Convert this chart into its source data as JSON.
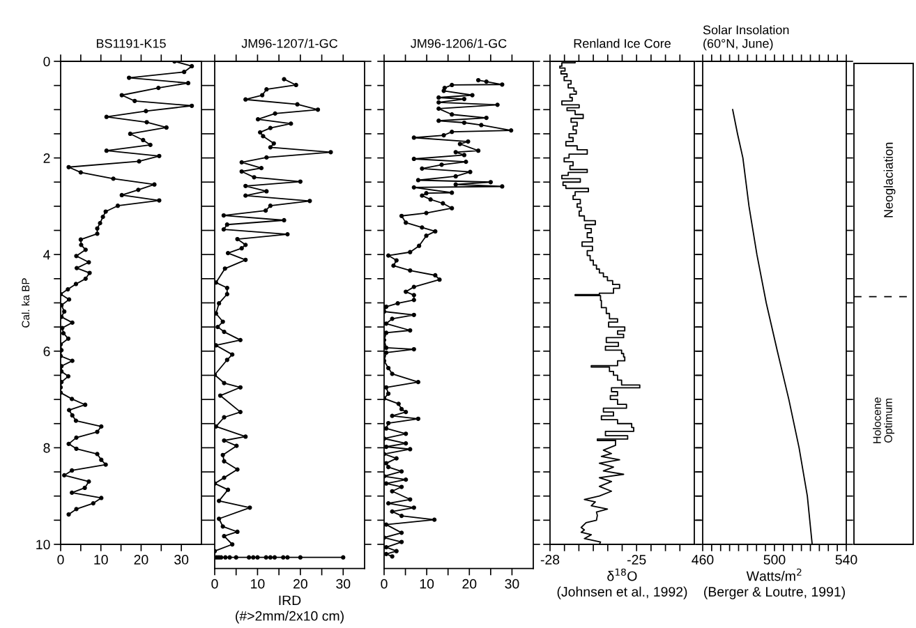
{
  "chart_data": [
    {
      "type": "line",
      "title": "BS1191-K15",
      "ylabel": "Cal. ka BP",
      "marker": "circle",
      "grid": false,
      "legend": false,
      "xlim": [
        0,
        35
      ],
      "xticks": [
        0,
        {
          "value": 5,
          "label": null
        },
        10,
        {
          "value": 15,
          "label": null
        },
        20,
        {
          "value": 25,
          "label": null
        },
        30
      ],
      "ylim": [
        10,
        0
      ],
      "yticks": [
        0,
        {
          "value": 0.5,
          "label": null
        },
        {
          "value": 1,
          "label": null
        },
        {
          "value": 1.5,
          "label": null
        },
        2,
        {
          "value": 2.5,
          "label": null
        },
        {
          "value": 3,
          "label": null
        },
        {
          "value": 3.5,
          "label": null
        },
        4,
        {
          "value": 4.5,
          "label": null
        },
        {
          "value": 5,
          "label": null
        },
        {
          "value": 5.5,
          "label": null
        },
        6,
        {
          "value": 6.5,
          "label": null
        },
        {
          "value": 7,
          "label": null
        },
        {
          "value": 7.5,
          "label": null
        },
        8,
        {
          "value": 8.5,
          "label": null
        },
        {
          "value": 9,
          "label": null
        },
        {
          "value": 9.5,
          "label": null
        },
        10
      ],
      "series": [
        {
          "color": "#000000",
          "x": [
            28.3,
            32.6,
            30.7,
            17,
            31.7,
            24.3,
            15.2,
            18.4,
            32.6,
            21.2,
            11.4,
            21.4,
            26.3,
            17.3,
            20.5,
            22.3,
            11.4,
            24.5,
            19.5,
            2.0,
            5.0,
            13.1,
            23.3,
            19.3,
            15.2,
            24.5,
            14.2,
            11.2,
            10.5,
            9.8,
            9.1,
            9.1,
            5.0,
            5.1,
            6.2,
            3.9,
            7.0,
            4.0,
            7.2,
            6.2,
            3.8,
            1.8,
            0,
            2.1,
            0.2,
            0.9,
            0.2,
            2.9,
            0.4,
            0.7,
            1.9,
            0,
            0.2,
            0,
            2.9,
            0.2,
            0.2,
            1.9,
            0.2,
            0,
            0,
            2.8,
            6.1,
            2.1,
            2.9,
            3.8,
            10.1,
            9.1,
            3.9,
            2.0,
            3.9,
            9.1,
            10.1,
            11.2,
            2.8,
            0.9,
            7.0,
            6.0,
            2.8,
            10.1,
            8.1,
            3.9,
            2.0
          ],
          "values": [
            0.0,
            0.1,
            0.22,
            0.34,
            0.45,
            0.55,
            0.7,
            0.82,
            0.92,
            1.03,
            1.15,
            1.26,
            1.37,
            1.5,
            1.63,
            1.73,
            1.85,
            1.96,
            2.07,
            2.19,
            2.3,
            2.43,
            2.55,
            2.66,
            2.77,
            2.88,
            2.99,
            3.11,
            3.22,
            3.35,
            3.46,
            3.57,
            3.69,
            3.8,
            3.9,
            4.03,
            4.16,
            4.28,
            4.38,
            4.5,
            4.61,
            4.72,
            4.82,
            4.93,
            5.05,
            5.18,
            5.29,
            5.41,
            5.52,
            5.63,
            5.74,
            5.86,
            5.98,
            6.1,
            6.2,
            6.31,
            6.42,
            6.52,
            6.64,
            6.75,
            6.86,
            6.99,
            7.11,
            7.22,
            7.33,
            7.44,
            7.56,
            7.67,
            7.79,
            7.92,
            8.02,
            8.13,
            8.25,
            8.35,
            8.47,
            8.57,
            8.7,
            8.83,
            8.93,
            9.04,
            9.15,
            9.27,
            9.38
          ]
        }
      ]
    },
    {
      "type": "line",
      "title": "JM96-1207/1-GC",
      "xlabel": "IRD\n(#>2mm/2x10 cm)",
      "marker": "circle",
      "grid": false,
      "legend": false,
      "tick_labels": "x",
      "xlim": [
        0,
        35
      ],
      "xticks": [
        0,
        {
          "value": 5,
          "label": null
        },
        10,
        {
          "value": 15,
          "label": null
        },
        20,
        {
          "value": 25,
          "label": null
        },
        30
      ],
      "ylim": [
        10.5,
        0
      ],
      "yticks": [
        0,
        {
          "value": 0.5,
          "label": null
        },
        {
          "value": 1,
          "label": null
        },
        {
          "value": 1.5,
          "label": null
        },
        2,
        {
          "value": 2.5,
          "label": null
        },
        {
          "value": 3,
          "label": null
        },
        {
          "value": 3.5,
          "label": null
        },
        4,
        {
          "value": 4.5,
          "label": null
        },
        {
          "value": 5,
          "label": null
        },
        {
          "value": 5.5,
          "label": null
        },
        6,
        {
          "value": 6.5,
          "label": null
        },
        {
          "value": 7,
          "label": null
        },
        {
          "value": 7.5,
          "label": null
        },
        8,
        {
          "value": 8.5,
          "label": null
        },
        {
          "value": 9,
          "label": null
        },
        {
          "value": 9.5,
          "label": null
        },
        10
      ],
      "series": [
        {
          "color": "#000000",
          "x": [
            16.2,
            19.0,
            12.1,
            11.1,
            7.2,
            19.3,
            24.1,
            14.1,
            10.1,
            17.8,
            13.0,
            10.6,
            11.3,
            13.8,
            13.0,
            27.1,
            12.1,
            6.3,
            10.9,
            6.3,
            9.2,
            20.0,
            7.2,
            12.1,
            7.2,
            22.2,
            13.0,
            11.9,
            2.1,
            16.2,
            2.9,
            2.1,
            17.0,
            5.3,
            7.2,
            6.3,
            3.1,
            7.2,
            2.4,
            0.3,
            2.9,
            2.9,
            1.0,
            0.3,
            1.9,
            0.7,
            2.2,
            6.0,
            0.3,
            4.1,
            2.9,
            0,
            2.2,
            6.0,
            1.3,
            6.0,
            2.2,
            0.3,
            7.2,
            2.2,
            5.1,
            1.9,
            2.2,
            5.3,
            2.2,
            0,
            3.1,
            1.0,
            8.2,
            1.0,
            1.9,
            5.3,
            2.2,
            4.1,
            0,
            0,
            0.5,
            1,
            1.5,
            2.5,
            3.5,
            5,
            8,
            9,
            10,
            12,
            13,
            14,
            16,
            17,
            20,
            30
          ],
          "values": [
            0.37,
            0.49,
            0.58,
            0.7,
            0.79,
            0.89,
            1.0,
            1.08,
            1.2,
            1.29,
            1.38,
            1.47,
            1.55,
            1.7,
            1.78,
            1.88,
            1.99,
            2.09,
            2.21,
            2.28,
            2.4,
            2.49,
            2.58,
            2.69,
            2.78,
            2.89,
            2.99,
            3.09,
            3.19,
            3.29,
            3.38,
            3.48,
            3.58,
            3.68,
            3.8,
            3.87,
            3.97,
            4.11,
            4.29,
            4.58,
            4.69,
            4.82,
            5.01,
            5.22,
            5.39,
            5.5,
            5.6,
            5.77,
            5.88,
            6.07,
            6.18,
            6.49,
            6.66,
            6.75,
            6.92,
            7.26,
            7.37,
            7.56,
            7.77,
            7.85,
            7.96,
            8.15,
            8.28,
            8.45,
            8.62,
            8.74,
            8.87,
            9.1,
            9.24,
            9.47,
            9.63,
            9.74,
            9.83,
            10.0,
            10.14,
            10.27,
            10.27,
            10.27,
            10.27,
            10.27,
            10.27,
            10.27,
            10.27,
            10.27,
            10.27,
            10.27,
            10.27,
            10.27,
            10.27,
            10.27,
            10.27,
            10.27
          ]
        }
      ]
    },
    {
      "type": "line",
      "title": "JM96-1206/1-GC",
      "marker": "circle",
      "grid": false,
      "legend": false,
      "tick_labels": "x",
      "xlim": [
        0,
        35
      ],
      "xticks": [
        0,
        {
          "value": 5,
          "label": null
        },
        10,
        {
          "value": 15,
          "label": null
        },
        20,
        {
          "value": 25,
          "label": null
        },
        30
      ],
      "ylim": [
        10.5,
        0
      ],
      "yticks": [
        0,
        {
          "value": 0.5,
          "label": null
        },
        {
          "value": 1,
          "label": null
        },
        {
          "value": 1.5,
          "label": null
        },
        2,
        {
          "value": 2.5,
          "label": null
        },
        {
          "value": 3,
          "label": null
        },
        {
          "value": 3.5,
          "label": null
        },
        4,
        {
          "value": 4.5,
          "label": null
        },
        {
          "value": 5,
          "label": null
        },
        {
          "value": 5.5,
          "label": null
        },
        6,
        {
          "value": 6.5,
          "label": null
        },
        {
          "value": 7,
          "label": null
        },
        {
          "value": 7.5,
          "label": null
        },
        8,
        {
          "value": 8.5,
          "label": null
        },
        {
          "value": 9,
          "label": null
        },
        {
          "value": 9.5,
          "label": null
        },
        10
      ],
      "series": [
        {
          "color": "#000000",
          "x": [
            22.1,
            24.0,
            27.7,
            15.9,
            14.2,
            14.0,
            20.7,
            12.8,
            18.8,
            12.8,
            26.6,
            12.8,
            15.9,
            24.0,
            12.8,
            18.8,
            22.8,
            29.8,
            15.9,
            14.0,
            7.0,
            19.7,
            17.8,
            22.1,
            16.8,
            18.8,
            7.0,
            19.2,
            13.5,
            8.9,
            20.2,
            16.8,
            8.0,
            25.0,
            16.8,
            27.7,
            7.0,
            15.9,
            9.9,
            8.9,
            10.9,
            13.8,
            15.9,
            9.9,
            4.1,
            5.1,
            8.9,
            12.0,
            9.9,
            8.2,
            6.1,
            1.0,
            2.9,
            2.2,
            6.1,
            12.0,
            13.0,
            7.0,
            5.1,
            7.0,
            7.0,
            3.2,
            0.5,
            0,
            7.0,
            1.9,
            0.5,
            6.1,
            0.5,
            0,
            0.5,
            7.0,
            0.5,
            0,
            1.0,
            1.9,
            8.0,
            0.5,
            1.0,
            0,
            3.4,
            4.1,
            5.1,
            1.9,
            8.0,
            1.0,
            0.5,
            5.1,
            0,
            5.1,
            0.5,
            6.1,
            0,
            2.9,
            0.5,
            1.0,
            4.1,
            0,
            5.1,
            0.5,
            4.1,
            1.9,
            6.1,
            1.0,
            7.0,
            1.9,
            4.1,
            11.8,
            0.5,
            4.1,
            0,
            4.1,
            0.5,
            2.9,
            0.5,
            1.9
          ],
          "values": [
            0.39,
            0.42,
            0.48,
            0.49,
            0.55,
            0.61,
            0.7,
            0.75,
            0.78,
            0.85,
            0.9,
            0.98,
            1.1,
            1.17,
            1.23,
            1.27,
            1.32,
            1.43,
            1.46,
            1.53,
            1.58,
            1.66,
            1.71,
            1.85,
            1.88,
            1.94,
            2.02,
            2.08,
            2.14,
            2.22,
            2.29,
            2.38,
            2.46,
            2.5,
            2.55,
            2.59,
            2.61,
            2.72,
            2.73,
            2.78,
            2.86,
            2.94,
            3.04,
            3.14,
            3.2,
            3.34,
            3.44,
            3.52,
            3.61,
            3.82,
            3.95,
            4.02,
            4.12,
            4.23,
            4.33,
            4.43,
            4.52,
            4.67,
            4.77,
            4.84,
            4.94,
            5.01,
            5.08,
            5.18,
            5.25,
            5.33,
            5.43,
            5.57,
            5.62,
            5.77,
            5.93,
            5.96,
            6.03,
            6.2,
            6.35,
            6.47,
            6.64,
            6.75,
            6.88,
            6.98,
            7.09,
            7.2,
            7.26,
            7.34,
            7.4,
            7.49,
            7.6,
            7.71,
            7.81,
            7.91,
            7.98,
            8.03,
            8.13,
            8.22,
            8.32,
            8.4,
            8.49,
            8.59,
            8.66,
            8.74,
            8.81,
            8.9,
            9.07,
            9.15,
            9.24,
            9.32,
            9.41,
            9.49,
            9.59,
            9.76,
            9.86,
            9.95,
            10.06,
            10.14,
            10.2,
            10.25
          ]
        }
      ]
    },
    {
      "type": "step",
      "title": "Renland Ice Core",
      "xlabel": "δ$^{18}$O\n(Johnsen et al., 1992)",
      "marker": "none",
      "grid": false,
      "legend": false,
      "tick_labels": "x",
      "xlim": [
        -28,
        -23
      ],
      "xticks": [
        -28,
        {
          "value": -27.5,
          "label": null
        },
        {
          "value": -27,
          "label": null
        },
        {
          "value": -26.5,
          "label": null
        },
        {
          "value": -26,
          "label": null
        },
        {
          "value": -25.5,
          "label": null
        },
        -25,
        {
          "value": -24.5,
          "label": null
        },
        {
          "value": -24,
          "label": null
        },
        {
          "value": -23.5,
          "label": null
        }
      ],
      "ylim": [
        10,
        0
      ],
      "yticks": [
        0,
        {
          "value": 0.5,
          "label": null
        },
        {
          "value": 1,
          "label": null
        },
        {
          "value": 1.5,
          "label": null
        },
        2,
        {
          "value": 2.5,
          "label": null
        },
        {
          "value": 3,
          "label": null
        },
        {
          "value": 3.5,
          "label": null
        },
        4,
        {
          "value": 4.5,
          "label": null
        },
        {
          "value": 5,
          "label": null
        },
        {
          "value": 5.5,
          "label": null
        },
        6,
        {
          "value": 6.5,
          "label": null
        },
        {
          "value": 7,
          "label": null
        },
        {
          "value": 7.5,
          "label": null
        },
        8,
        {
          "value": 8.5,
          "label": null
        },
        {
          "value": 9,
          "label": null
        },
        {
          "value": 9.5,
          "label": null
        },
        10
      ],
      "series": [
        {
          "type": "step",
          "color": "#000000",
          "x": [
            -27.13,
            -27.59,
            -27.66,
            -27.48,
            -27.62,
            -27.41,
            -27.51,
            -27.27,
            -27.37,
            -27.17,
            -27.09,
            -27.31,
            -27.23,
            -27.59,
            -26.99,
            -27.41,
            -27.13,
            -26.85,
            -27.27,
            -27.06,
            -27.2,
            -27.09,
            -27.34,
            -27.2,
            -27.45,
            -27.06,
            -26.71,
            -27.34,
            -27.51,
            -27.2,
            -27.31,
            -26.71,
            -27.37,
            -27.59,
            -26.95,
            -27.55,
            -27.45,
            -26.67,
            -27.13,
            -27.2,
            -26.95,
            -27.06,
            -26.92,
            -26.99,
            -26.81,
            -26.43,
            -26.78,
            -26.57,
            -26.71,
            -26.53,
            -26.89,
            -26.53,
            -26.71,
            -26.61,
            -26.5,
            -26.39,
            -26.29,
            -26.15,
            -26.01,
            -25.83,
            -25.59,
            -25.8,
            -26.29,
            -27.13,
            -26.25,
            -26.22,
            -26.05,
            -25.94,
            -25.66,
            -25.97,
            -25.41,
            -25.66,
            -25.45,
            -26.05,
            -25.63,
            -26.08,
            -25.52,
            -25.45,
            -25.41,
            -25.66,
            -26.57,
            -25.94,
            -25.8,
            -25.66,
            -25.52,
            -24.89,
            -25.87,
            -25.66,
            -25.91,
            -25.66,
            -25.35,
            -26.15,
            -25.8,
            -26.22,
            -25.66,
            -25.17,
            -25.1,
            -26.08,
            -25.31,
            -26.36,
            -25.73
          ],
          "values": [
            0.0,
            0.03,
            0.1,
            0.14,
            0.2,
            0.26,
            0.32,
            0.4,
            0.47,
            0.55,
            0.62,
            0.68,
            0.75,
            0.82,
            0.9,
            0.96,
            1.02,
            1.1,
            1.18,
            1.26,
            1.34,
            1.42,
            1.5,
            1.58,
            1.66,
            1.75,
            1.83,
            1.92,
            2.0,
            2.08,
            2.16,
            2.24,
            2.3,
            2.36,
            2.43,
            2.5,
            2.57,
            2.63,
            2.7,
            2.78,
            2.86,
            2.95,
            3.02,
            3.1,
            3.2,
            3.3,
            3.38,
            3.46,
            3.55,
            3.65,
            3.74,
            3.83,
            3.92,
            4.02,
            4.12,
            4.22,
            4.3,
            4.38,
            4.46,
            4.54,
            4.62,
            4.7,
            4.8,
            4.83,
            4.85,
            4.95,
            5.1,
            5.22,
            5.33,
            5.4,
            5.5,
            5.58,
            5.65,
            5.72,
            5.82,
            5.9,
            5.98,
            6.05,
            6.12,
            6.2,
            6.3,
            6.33,
            6.42,
            6.5,
            6.6,
            6.7,
            6.76,
            6.84,
            6.92,
            7.0,
            7.1,
            7.18,
            7.26,
            7.34,
            7.42,
            7.5,
            7.58,
            7.66,
            7.75,
            7.82,
            7.85
          ]
        },
        {
          "type": "line",
          "color": "#000000",
          "x": [
            -25.73,
            -25.73,
            -26.15,
            -25.87,
            -26.22,
            -25.59,
            -26.29,
            -25.8,
            -26.15,
            -25.45,
            -26.29,
            -25.87,
            -26.29,
            -25.87,
            -26.29,
            -26.81,
            -26.43,
            -26.57,
            -26.01,
            -26.39,
            -26.36,
            -26.39,
            -26.75,
            -26.92,
            -26.81,
            -26.92,
            -26.57,
            -26.81,
            -26.25,
            -26.29
          ],
          "values": [
            7.85,
            7.95,
            8.05,
            8.12,
            8.18,
            8.25,
            8.32,
            8.4,
            8.48,
            8.55,
            8.62,
            8.7,
            8.8,
            8.9,
            9.0,
            9.07,
            9.12,
            9.2,
            9.27,
            9.33,
            9.4,
            9.5,
            9.55,
            9.65,
            9.7,
            9.75,
            9.8,
            9.88,
            9.95,
            10.0
          ]
        }
      ]
    },
    {
      "type": "line",
      "title": "Solar Insolation\n(60°N, June)",
      "xlabel": "Watts/m$^{2}$\n(Berger & Loutre, 1991)",
      "marker": "none",
      "grid": false,
      "legend": false,
      "tick_labels": "x",
      "xlim": [
        460,
        540
      ],
      "xticks": [
        460,
        {
          "value": 465,
          "label": null
        },
        {
          "value": 470,
          "label": null
        },
        {
          "value": 475,
          "label": null
        },
        {
          "value": 480,
          "label": null
        },
        {
          "value": 485,
          "label": null
        },
        {
          "value": 490,
          "label": null
        },
        {
          "value": 495,
          "label": null
        },
        500,
        {
          "value": 505,
          "label": null
        },
        {
          "value": 510,
          "label": null
        },
        {
          "value": 515,
          "label": null
        },
        {
          "value": 520,
          "label": null
        },
        {
          "value": 525,
          "label": null
        },
        {
          "value": 530,
          "label": null
        },
        {
          "value": 535,
          "label": null
        },
        540
      ],
      "ylim": [
        10,
        0
      ],
      "yticks": [
        0,
        {
          "value": 0.5,
          "label": null
        },
        {
          "value": 1,
          "label": null
        },
        {
          "value": 1.5,
          "label": null
        },
        2,
        {
          "value": 2.5,
          "label": null
        },
        {
          "value": 3,
          "label": null
        },
        {
          "value": 3.5,
          "label": null
        },
        4,
        {
          "value": 4.5,
          "label": null
        },
        {
          "value": 5,
          "label": null
        },
        {
          "value": 5.5,
          "label": null
        },
        6,
        {
          "value": 6.5,
          "label": null
        },
        {
          "value": 7,
          "label": null
        },
        {
          "value": 7.5,
          "label": null
        },
        8,
        {
          "value": 8.5,
          "label": null
        },
        {
          "value": 9,
          "label": null
        },
        {
          "value": 9.5,
          "label": null
        },
        10
      ],
      "series": [
        {
          "color": "#000000",
          "x": [
            476.7,
            479.4,
            482.4,
            485.8,
            490.2,
            495.4,
            501.6,
            508.0,
            513.7,
            518.3,
            521.0
          ],
          "values": [
            1.0,
            1.5,
            2.0,
            3.0,
            4.0,
            5.0,
            6.0,
            7.0,
            8.0,
            9.0,
            10.0
          ]
        }
      ]
    },
    {
      "type": "other",
      "annotations": [
        "Neoglaciation",
        "Holocene\nOptimum"
      ]
    }
  ]
}
